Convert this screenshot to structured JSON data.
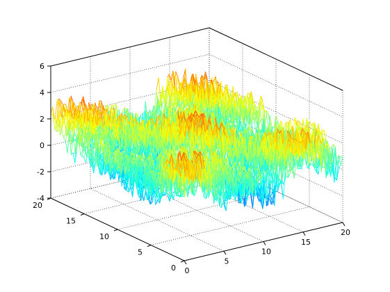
{
  "chart_data": {
    "type": "surface",
    "title": "",
    "xlabel": "",
    "ylabel": "",
    "zlabel": "",
    "colormap": "jet",
    "grid": true,
    "box": true,
    "xlim": [
      0,
      20
    ],
    "ylim": [
      0,
      20
    ],
    "zlim": [
      -4,
      6
    ],
    "x_ticks": [
      "0",
      "5",
      "10",
      "15",
      "20"
    ],
    "y_ticks": [
      "0",
      "5",
      "10",
      "15",
      "20"
    ],
    "z_ticks": [
      "-4",
      "-2",
      "0",
      "2",
      "4",
      "6"
    ],
    "z_range": [
      -3.5,
      5.5
    ],
    "description_values": {
      "mean_height": 0.8,
      "approx_min": -3.5,
      "approx_max": 5.5
    }
  }
}
